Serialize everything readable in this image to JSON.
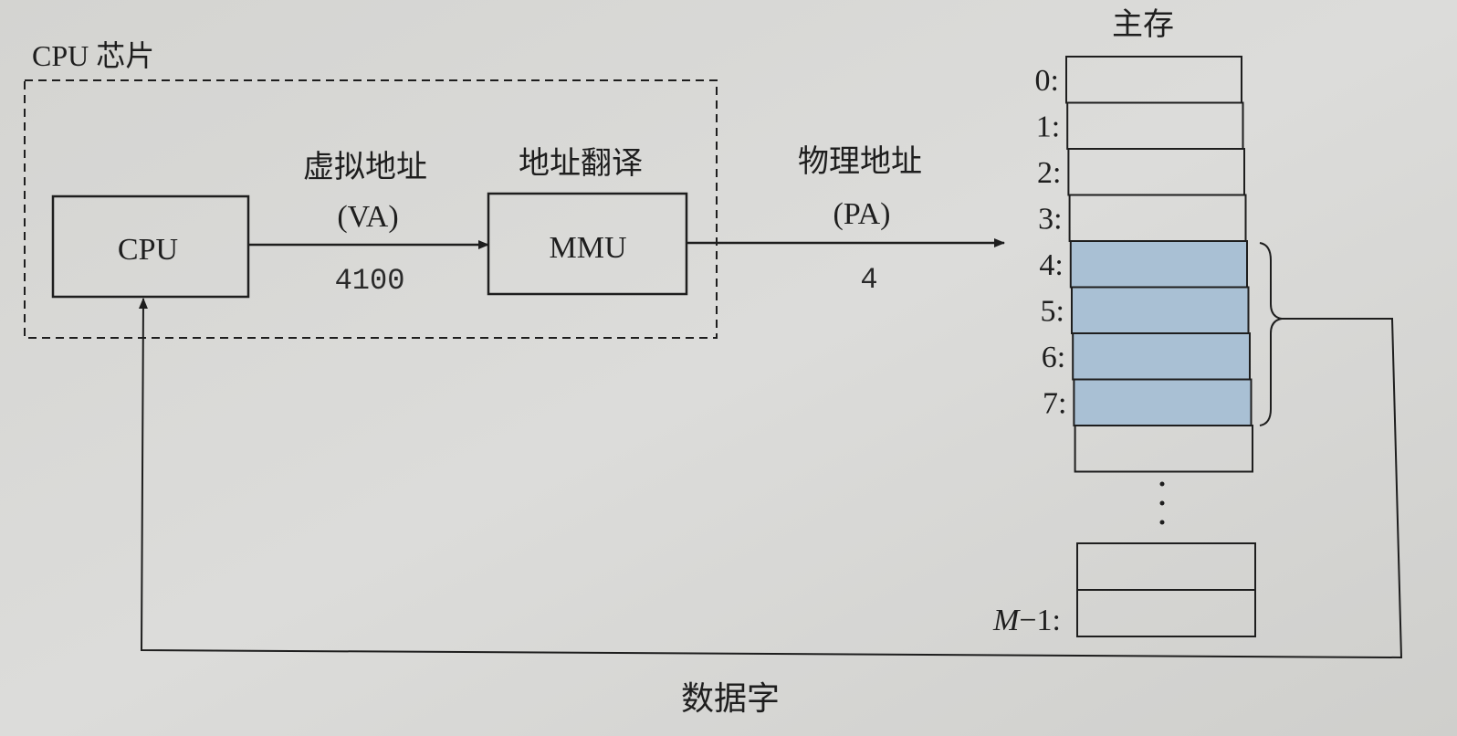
{
  "chip_label": "CPU 芯片",
  "cpu": {
    "label": "CPU"
  },
  "virtual_address": {
    "title": "虚拟地址",
    "abbr": "(VA)",
    "value": "4100"
  },
  "mmu": {
    "title": "地址翻译",
    "label": "MMU"
  },
  "physical_address": {
    "title": "物理地址",
    "abbr": "(PA)",
    "value": "4"
  },
  "memory": {
    "title": "主存",
    "rows": [
      "0:",
      "1:",
      "2:",
      "3:",
      "4:",
      "5:",
      "6:",
      "7:"
    ],
    "highlighted_rows": [
      4,
      5,
      6,
      7
    ],
    "last_row_label_var": "M",
    "last_row_label_rest": "−1:"
  },
  "data_word_label": "数据字",
  "colors": {
    "highlight": "#a9c0d4",
    "background": "#d6d6d3",
    "line": "#1e1e1e"
  }
}
